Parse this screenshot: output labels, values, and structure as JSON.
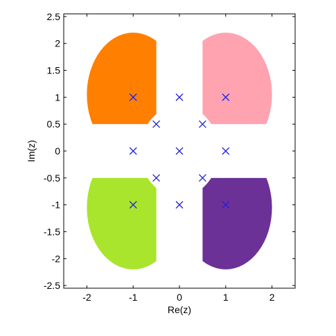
{
  "chart_data": {
    "type": "scatter",
    "xlabel": "Re(z)",
    "ylabel": "Im(z)",
    "xlim": [
      -2.5,
      2.5
    ],
    "ylim": [
      -2.55,
      2.55
    ],
    "grid": false,
    "x_ticks": [
      -2,
      -1,
      0,
      1,
      2
    ],
    "x_tick_labels": [
      "-2",
      "-1",
      "0",
      "1",
      "2"
    ],
    "y_ticks": [
      2.5,
      2,
      1.5,
      1,
      0.5,
      0,
      -0.5,
      -1,
      -1.5,
      -2,
      -2.5
    ],
    "y_tick_labels": [
      "2.5",
      "2",
      "1.5",
      "1",
      "0.5",
      "0",
      "-0.5",
      "-1",
      "-1.5",
      "-2",
      "-2.5"
    ],
    "marker_color": "#2020e0",
    "points": [
      {
        "x": -1,
        "y": 1
      },
      {
        "x": 0,
        "y": 1
      },
      {
        "x": 1,
        "y": 1
      },
      {
        "x": -0.5,
        "y": 0.5
      },
      {
        "x": 0.5,
        "y": 0.5
      },
      {
        "x": -1,
        "y": 0
      },
      {
        "x": 0,
        "y": 0
      },
      {
        "x": 1,
        "y": 0
      },
      {
        "x": -0.5,
        "y": -0.5
      },
      {
        "x": 0.5,
        "y": -0.5
      },
      {
        "x": -1,
        "y": -1
      },
      {
        "x": 0,
        "y": -1
      },
      {
        "x": 1,
        "y": -1
      }
    ],
    "regions": [
      {
        "quadrant": "upper-left",
        "color": "#ff7f00"
      },
      {
        "quadrant": "upper-right",
        "color": "#ffa3b1"
      },
      {
        "quadrant": "lower-left",
        "color": "#a8e52c"
      },
      {
        "quadrant": "lower-right",
        "color": "#6b3196"
      }
    ]
  }
}
